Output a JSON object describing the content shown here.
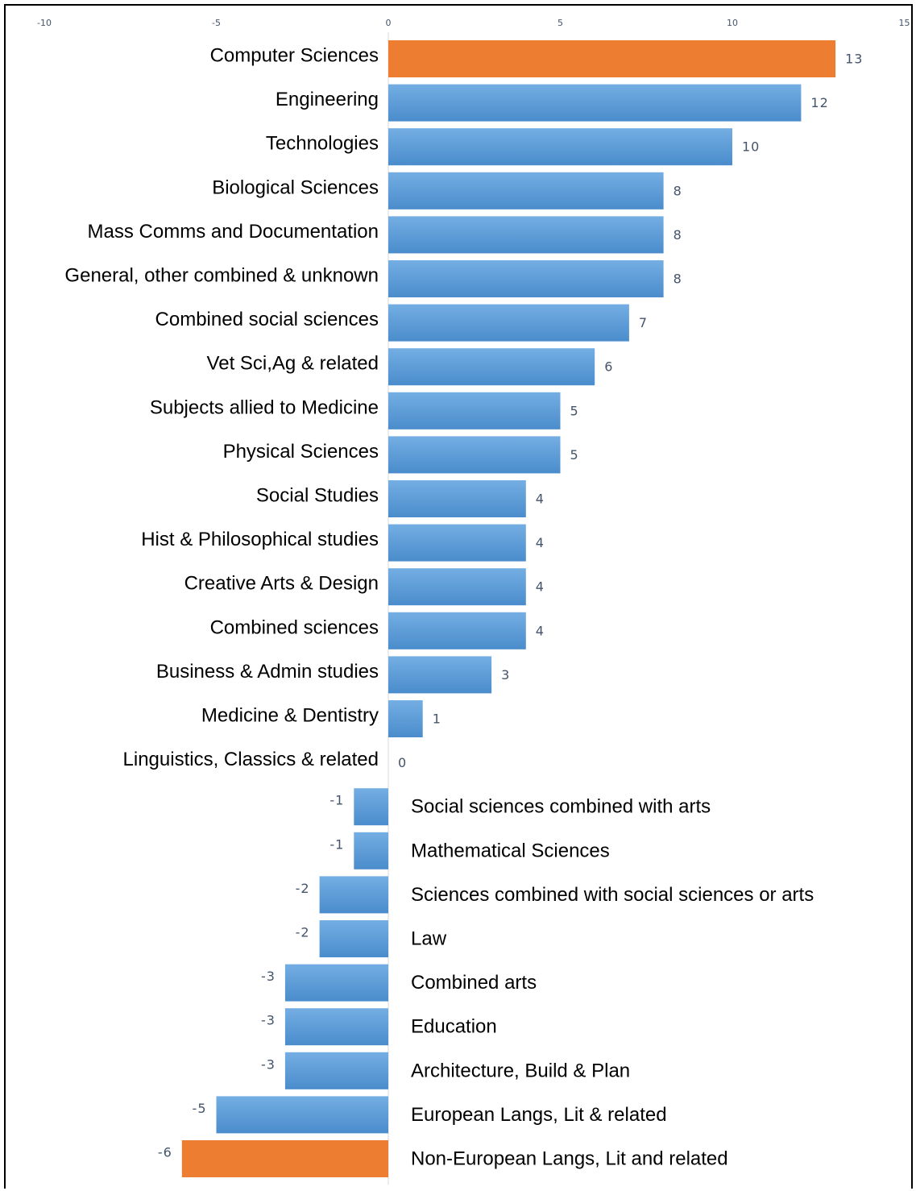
{
  "chart_data": {
    "type": "bar",
    "orientation": "horizontal",
    "categories": [
      "Computer Sciences",
      "Engineering",
      "Technologies",
      "Biological Sciences",
      "Mass Comms and Documentation",
      "General, other combined & unknown",
      "Combined social sciences",
      "Vet Sci,Ag & related",
      "Subjects allied to Medicine",
      "Physical Sciences",
      "Social Studies",
      "Hist & Philosophical studies",
      "Creative Arts & Design",
      "Combined sciences",
      "Business & Admin studies",
      "Medicine & Dentistry",
      "Linguistics, Classics & related",
      "Social sciences combined with arts",
      "Mathematical Sciences",
      "Sciences combined with social sciences or arts",
      "Law",
      "Combined arts",
      "Education",
      "Architecture, Build & Plan",
      "European Langs, Lit & related",
      "Non-European Langs, Lit and related"
    ],
    "values": [
      13,
      12,
      10,
      8,
      8,
      8,
      7,
      6,
      5,
      5,
      4,
      4,
      4,
      4,
      3,
      1,
      0,
      -1,
      -1,
      -2,
      -2,
      -3,
      -3,
      -3,
      -5,
      -6
    ],
    "highlighted": [
      "Computer Sciences",
      "Non-European Langs, Lit and related"
    ],
    "xlim": [
      -10,
      15
    ],
    "xticks": [
      "-10",
      "-5",
      "0",
      "5",
      "10",
      "15"
    ],
    "xaxis_position": "top",
    "grid": false,
    "title": "",
    "xlabel": "",
    "ylabel": "",
    "colors": {
      "bar": "#5b9bd5",
      "bar_light": "#74aee3",
      "highlight": "#ed7d31",
      "value_label": "#44546a",
      "axis": "#d9d9d9"
    }
  }
}
